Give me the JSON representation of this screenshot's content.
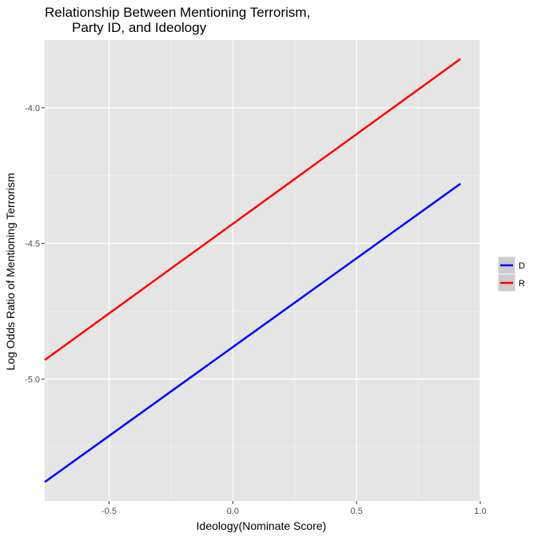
{
  "chart_data": {
    "type": "line",
    "title_lines": [
      "Relationship Between Mentioning Terrorism,",
      "Party ID, and Ideology"
    ],
    "xlabel": "Ideology(Nominate Score)",
    "ylabel": "Log Odds Ratio of Mentioning Terrorism",
    "xlim": [
      -0.76,
      1.0
    ],
    "ylim": [
      -5.45,
      -3.75
    ],
    "x_ticks": [
      -0.5,
      0.0,
      0.5,
      1.0
    ],
    "x_tick_labels": [
      "-0.5",
      "0.0",
      "0.5",
      "1.0"
    ],
    "y_ticks": [
      -5.0,
      -4.5,
      -4.0
    ],
    "y_tick_labels": [
      "-5.0",
      "-4.5",
      "-4.0"
    ],
    "grid": true,
    "legend_position": "right",
    "series": [
      {
        "name": "D",
        "color": "#0000ff",
        "x": [
          -0.76,
          0.92
        ],
        "y": [
          -5.38,
          -4.28
        ]
      },
      {
        "name": "R",
        "color": "#ff0000",
        "x": [
          -0.76,
          0.92
        ],
        "y": [
          -4.93,
          -3.82
        ]
      }
    ]
  }
}
